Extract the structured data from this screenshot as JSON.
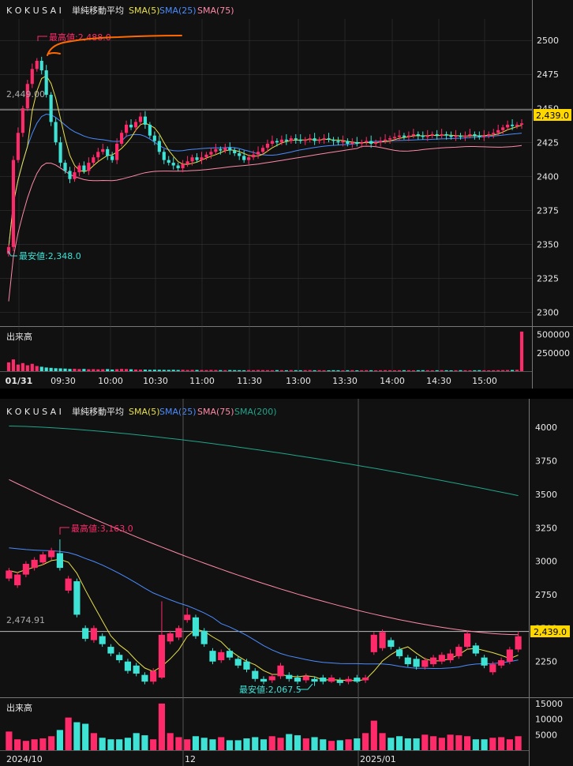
{
  "colors": {
    "up": "#ff2a6a",
    "down": "#3fe3d6",
    "sma5": "#e8e04a",
    "sma25": "#4a8cff",
    "sma75": "#ff8aa8",
    "sma200": "#1fa58a",
    "grid": "#3a3a3a",
    "bg": "#111111",
    "price_tag": "#ffd700",
    "handwriting": "#ff6a00"
  },
  "chart_data": [
    {
      "id": "intraday",
      "type": "candlestick",
      "ticker": "K O K U S A I",
      "indicator_title": "単純移動平均",
      "legend": [
        {
          "name": "SMA(5)",
          "color_key": "sma5"
        },
        {
          "name": "SMA(25)",
          "color_key": "sma25"
        },
        {
          "name": "SMA(75)",
          "color_key": "sma75"
        }
      ],
      "y_ticks": [
        "2500",
        "2475",
        "2450",
        "2425",
        "2400",
        "2375",
        "2350",
        "2325",
        "2300"
      ],
      "ylim": [
        2295,
        2510
      ],
      "x_labels": [
        "01/31",
        "09:30",
        "10:00",
        "10:30",
        "11:00",
        "11:30",
        "13:00",
        "13:30",
        "14:00",
        "14:30",
        "15:00"
      ],
      "ref_line_value": 2449,
      "ref_line_label": "2,449.00",
      "high_label": "最高値:2,488.0",
      "high_value": 2488,
      "low_label": "最安値:2,348.0",
      "low_value": 2348,
      "last_price_label": "2,439.0",
      "last_price": 2439,
      "volume_title": "出来高",
      "volume_ticks": [
        "500000",
        "250000"
      ],
      "volume_max": 560000,
      "candle_count": 110,
      "closes": [
        2348,
        2412,
        2432,
        2450,
        2468,
        2479,
        2485,
        2478,
        2460,
        2440,
        2425,
        2410,
        2404,
        2398,
        2403,
        2408,
        2404,
        2410,
        2414,
        2418,
        2420,
        2415,
        2412,
        2424,
        2432,
        2438,
        2436,
        2440,
        2444,
        2438,
        2430,
        2426,
        2418,
        2412,
        2410,
        2408,
        2406,
        2409,
        2411,
        2414,
        2412,
        2414,
        2416,
        2418,
        2420,
        2419,
        2421,
        2419,
        2417,
        2415,
        2412,
        2414,
        2416,
        2418,
        2421,
        2424,
        2426,
        2425,
        2427,
        2426,
        2428,
        2427,
        2426,
        2427,
        2428,
        2426,
        2427,
        2428,
        2427,
        2426,
        2425,
        2426,
        2424,
        2425,
        2424,
        2425,
        2426,
        2424,
        2425,
        2426,
        2427,
        2428,
        2429,
        2430,
        2429,
        2430,
        2431,
        2430,
        2429,
        2430,
        2431,
        2430,
        2431,
        2430,
        2429,
        2430,
        2429,
        2430,
        2431,
        2430,
        2429,
        2430,
        2431,
        2432,
        2434,
        2436,
        2438,
        2437,
        2438,
        2439
      ],
      "volumes": [
        120000,
        160000,
        90000,
        110000,
        80000,
        100000,
        70000,
        60000,
        50000,
        45000,
        40000,
        38000,
        35000,
        30000,
        32000,
        28000,
        30000,
        25000,
        27000,
        24000,
        26000,
        28000,
        22000,
        26000,
        30000,
        28000,
        25000,
        22000,
        20000,
        21000,
        18000,
        20000,
        19000,
        18000,
        17000,
        19000,
        16000,
        18000,
        15000,
        17000,
        16000,
        15000,
        14000,
        16000,
        15000,
        14000,
        13000,
        15000,
        14000,
        13000,
        12000,
        14000,
        13000,
        15000,
        14000,
        13000,
        12000,
        14000,
        13000,
        12000,
        14000,
        13000,
        12000,
        13000,
        14000,
        12000,
        13000,
        12000,
        11000,
        13000,
        12000,
        11000,
        12000,
        13000,
        11000,
        12000,
        13000,
        12000,
        11000,
        12000,
        13000,
        12000,
        11000,
        12000,
        13000,
        12000,
        11000,
        12000,
        13000,
        12000,
        11000,
        12000,
        13000,
        12000,
        11000,
        12000,
        13000,
        12000,
        11000,
        12000,
        13000,
        12000,
        11000,
        12000,
        13000,
        14000,
        15000,
        16000,
        18000,
        540000
      ]
    },
    {
      "id": "daily",
      "type": "candlestick",
      "ticker": "K O K U S A I",
      "indicator_title": "単純移動平均",
      "legend": [
        {
          "name": "SMA(5)",
          "color_key": "sma5"
        },
        {
          "name": "SMA(25)",
          "color_key": "sma25"
        },
        {
          "name": "SMA(75)",
          "color_key": "sma75"
        },
        {
          "name": "SMA(200)",
          "color_key": "sma200"
        }
      ],
      "y_ticks": [
        "4000",
        "3750",
        "3500",
        "3250",
        "3000",
        "2750",
        "2500",
        "2250"
      ],
      "ylim": [
        2030,
        4060
      ],
      "x_labels": [
        "2024/10",
        "12",
        "2025/01"
      ],
      "ref_line_value": 2474.91,
      "ref_line_label": "2,474.91",
      "high_label": "最高値:3,163.0",
      "high_value": 3163,
      "low_label": "最安値:2,067.5",
      "low_value": 2067.5,
      "last_price_label": "2,439.0",
      "last_price": 2439,
      "volume_title": "出来高",
      "volume_ticks": [
        "15000",
        "10000",
        "5000"
      ],
      "volume_max": 16000,
      "candles": [
        {
          "o": 2870,
          "c": 2930,
          "h": 2950,
          "l": 2850
        },
        {
          "o": 2820,
          "c": 2900,
          "h": 2920,
          "l": 2800
        },
        {
          "o": 2900,
          "c": 2980,
          "h": 3000,
          "l": 2880
        },
        {
          "o": 2950,
          "c": 3010,
          "h": 3030,
          "l": 2930
        },
        {
          "o": 2990,
          "c": 3050,
          "h": 3070,
          "l": 2970
        },
        {
          "o": 3030,
          "c": 3080,
          "h": 3100,
          "l": 3010
        },
        {
          "o": 3060,
          "c": 2950,
          "h": 3163,
          "l": 2930
        },
        {
          "o": 2780,
          "c": 2870,
          "h": 2890,
          "l": 2760
        },
        {
          "o": 2850,
          "c": 2600,
          "h": 2870,
          "l": 2580
        },
        {
          "o": 2500,
          "c": 2420,
          "h": 2520,
          "l": 2400
        },
        {
          "o": 2410,
          "c": 2500,
          "h": 2520,
          "l": 2390
        },
        {
          "o": 2440,
          "c": 2380,
          "h": 2460,
          "l": 2360
        },
        {
          "o": 2360,
          "c": 2310,
          "h": 2380,
          "l": 2290
        },
        {
          "o": 2300,
          "c": 2260,
          "h": 2320,
          "l": 2240
        },
        {
          "o": 2250,
          "c": 2180,
          "h": 2270,
          "l": 2160
        },
        {
          "o": 2220,
          "c": 2160,
          "h": 2240,
          "l": 2140
        },
        {
          "o": 2150,
          "c": 2100,
          "h": 2170,
          "l": 2080
        },
        {
          "o": 2100,
          "c": 2180,
          "h": 2200,
          "l": 2080
        },
        {
          "o": 2130,
          "c": 2450,
          "h": 2700,
          "l": 2120
        },
        {
          "o": 2400,
          "c": 2460,
          "h": 2480,
          "l": 2380
        },
        {
          "o": 2430,
          "c": 2500,
          "h": 2520,
          "l": 2410
        },
        {
          "o": 2560,
          "c": 2600,
          "h": 2650,
          "l": 2540
        },
        {
          "o": 2580,
          "c": 2440,
          "h": 2600,
          "l": 2420
        },
        {
          "o": 2480,
          "c": 2380,
          "h": 2500,
          "l": 2360
        },
        {
          "o": 2330,
          "c": 2250,
          "h": 2350,
          "l": 2230
        },
        {
          "o": 2260,
          "c": 2320,
          "h": 2340,
          "l": 2240
        },
        {
          "o": 2330,
          "c": 2280,
          "h": 2350,
          "l": 2260
        },
        {
          "o": 2270,
          "c": 2220,
          "h": 2290,
          "l": 2200
        },
        {
          "o": 2250,
          "c": 2190,
          "h": 2270,
          "l": 2170
        },
        {
          "o": 2180,
          "c": 2120,
          "h": 2200,
          "l": 2100
        },
        {
          "o": 2120,
          "c": 2100,
          "h": 2140,
          "l": 2080
        },
        {
          "o": 2110,
          "c": 2140,
          "h": 2160,
          "l": 2090
        },
        {
          "o": 2140,
          "c": 2220,
          "h": 2240,
          "l": 2120
        },
        {
          "o": 2150,
          "c": 2120,
          "h": 2170,
          "l": 2100
        },
        {
          "o": 2130,
          "c": 2100,
          "h": 2150,
          "l": 2080
        },
        {
          "o": 2110,
          "c": 2140,
          "h": 2160,
          "l": 2090
        },
        {
          "o": 2120,
          "c": 2100,
          "h": 2140,
          "l": 2067.5
        },
        {
          "o": 2130,
          "c": 2100,
          "h": 2150,
          "l": 2080
        },
        {
          "o": 2100,
          "c": 2130,
          "h": 2150,
          "l": 2090
        },
        {
          "o": 2110,
          "c": 2090,
          "h": 2130,
          "l": 2070
        },
        {
          "o": 2100,
          "c": 2120,
          "h": 2140,
          "l": 2080
        },
        {
          "o": 2130,
          "c": 2100,
          "h": 2150,
          "l": 2090
        },
        {
          "o": 2110,
          "c": 2130,
          "h": 2150,
          "l": 2090
        },
        {
          "o": 2320,
          "c": 2450,
          "h": 2470,
          "l": 2300
        },
        {
          "o": 2350,
          "c": 2470,
          "h": 2490,
          "l": 2330
        },
        {
          "o": 2410,
          "c": 2360,
          "h": 2430,
          "l": 2340
        },
        {
          "o": 2340,
          "c": 2290,
          "h": 2360,
          "l": 2270
        },
        {
          "o": 2280,
          "c": 2230,
          "h": 2300,
          "l": 2210
        },
        {
          "o": 2270,
          "c": 2210,
          "h": 2290,
          "l": 2190
        },
        {
          "o": 2210,
          "c": 2260,
          "h": 2280,
          "l": 2190
        },
        {
          "o": 2230,
          "c": 2280,
          "h": 2300,
          "l": 2210
        },
        {
          "o": 2250,
          "c": 2300,
          "h": 2320,
          "l": 2230
        },
        {
          "o": 2260,
          "c": 2310,
          "h": 2340,
          "l": 2240
        },
        {
          "o": 2290,
          "c": 2360,
          "h": 2380,
          "l": 2270
        },
        {
          "o": 2360,
          "c": 2460,
          "h": 2480,
          "l": 2340
        },
        {
          "o": 2370,
          "c": 2310,
          "h": 2390,
          "l": 2290
        },
        {
          "o": 2280,
          "c": 2220,
          "h": 2300,
          "l": 2200
        },
        {
          "o": 2170,
          "c": 2230,
          "h": 2250,
          "l": 2150
        },
        {
          "o": 2220,
          "c": 2260,
          "h": 2280,
          "l": 2200
        },
        {
          "o": 2250,
          "c": 2340,
          "h": 2360,
          "l": 2230
        },
        {
          "o": 2340,
          "c": 2439,
          "h": 2475,
          "l": 2320
        }
      ],
      "volumes": [
        6000,
        3500,
        3000,
        3500,
        3800,
        4500,
        6500,
        10500,
        9000,
        8500,
        5500,
        4000,
        3500,
        3500,
        4000,
        5500,
        4800,
        3500,
        15000,
        5500,
        4200,
        3500,
        4500,
        4000,
        3500,
        4200,
        3200,
        3200,
        3800,
        4200,
        3500,
        4500,
        4000,
        5200,
        4800,
        3800,
        4200,
        3500,
        3000,
        3200,
        3500,
        3800,
        5500,
        9500,
        5500,
        4000,
        4500,
        3800,
        3800,
        5000,
        4500,
        4000,
        5000,
        4800,
        4500,
        3500,
        3500,
        4000,
        4200,
        3500,
        4500
      ]
    }
  ]
}
